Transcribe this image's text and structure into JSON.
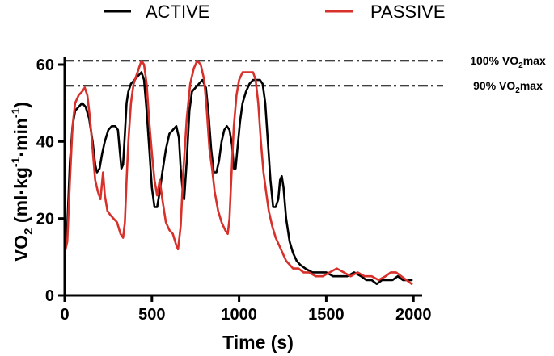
{
  "chart_data": {
    "type": "line",
    "xlabel": "Time (s)",
    "ylabel_main": "VO",
    "ylabel_sub": "2",
    "ylabel_unit_prefix": " (ml·kg",
    "ylabel_unit_exp1": "-1",
    "ylabel_unit_mid": "·min",
    "ylabel_unit_exp2": "-1",
    "ylabel_unit_close": ")",
    "xlim": [
      0,
      2050
    ],
    "ylim": [
      0,
      65
    ],
    "x_ticks": [
      0,
      500,
      1000,
      1500,
      2000
    ],
    "y_ticks": [
      0,
      20,
      40,
      60
    ],
    "legend_placement": "top",
    "reference_lines": [
      {
        "value": 61,
        "label_pre": "100% VO",
        "label_sub": "2",
        "label_post": "max"
      },
      {
        "value": 54.5,
        "label_pre": "90% VO",
        "label_sub": "2",
        "label_post": "max"
      }
    ],
    "series": [
      {
        "name": "ACTIVE",
        "color": "#000000",
        "points": [
          [
            0,
            13
          ],
          [
            15,
            18
          ],
          [
            30,
            35
          ],
          [
            45,
            44
          ],
          [
            60,
            48
          ],
          [
            80,
            49
          ],
          [
            100,
            50
          ],
          [
            120,
            49
          ],
          [
            140,
            46
          ],
          [
            160,
            40
          ],
          [
            175,
            34
          ],
          [
            185,
            32
          ],
          [
            200,
            33
          ],
          [
            215,
            37
          ],
          [
            230,
            40
          ],
          [
            250,
            43
          ],
          [
            270,
            44
          ],
          [
            290,
            44
          ],
          [
            305,
            43
          ],
          [
            315,
            38
          ],
          [
            325,
            33
          ],
          [
            335,
            34
          ],
          [
            345,
            42
          ],
          [
            355,
            50
          ],
          [
            365,
            53
          ],
          [
            380,
            55
          ],
          [
            400,
            56
          ],
          [
            420,
            57
          ],
          [
            440,
            58
          ],
          [
            455,
            56
          ],
          [
            470,
            48
          ],
          [
            485,
            38
          ],
          [
            500,
            28
          ],
          [
            515,
            23
          ],
          [
            530,
            23
          ],
          [
            545,
            27
          ],
          [
            560,
            32
          ],
          [
            580,
            38
          ],
          [
            600,
            42
          ],
          [
            620,
            43
          ],
          [
            640,
            44
          ],
          [
            655,
            41
          ],
          [
            665,
            33
          ],
          [
            675,
            28
          ],
          [
            685,
            25
          ],
          [
            700,
            35
          ],
          [
            715,
            48
          ],
          [
            730,
            53
          ],
          [
            750,
            54
          ],
          [
            770,
            55
          ],
          [
            790,
            56
          ],
          [
            810,
            54
          ],
          [
            825,
            47
          ],
          [
            840,
            38
          ],
          [
            855,
            32
          ],
          [
            870,
            32
          ],
          [
            885,
            35
          ],
          [
            900,
            40
          ],
          [
            915,
            43
          ],
          [
            930,
            44
          ],
          [
            945,
            43
          ],
          [
            960,
            39
          ],
          [
            970,
            33
          ],
          [
            980,
            33
          ],
          [
            990,
            38
          ],
          [
            1005,
            45
          ],
          [
            1020,
            50
          ],
          [
            1040,
            53
          ],
          [
            1060,
            55
          ],
          [
            1080,
            56
          ],
          [
            1100,
            56
          ],
          [
            1120,
            56
          ],
          [
            1135,
            55
          ],
          [
            1150,
            50
          ],
          [
            1165,
            40
          ],
          [
            1180,
            30
          ],
          [
            1195,
            23
          ],
          [
            1210,
            23
          ],
          [
            1225,
            25
          ],
          [
            1235,
            30
          ],
          [
            1245,
            31
          ],
          [
            1255,
            28
          ],
          [
            1270,
            20
          ],
          [
            1290,
            14
          ],
          [
            1310,
            11
          ],
          [
            1330,
            9
          ],
          [
            1350,
            8
          ],
          [
            1380,
            7
          ],
          [
            1420,
            6
          ],
          [
            1460,
            6
          ],
          [
            1500,
            6
          ],
          [
            1540,
            5
          ],
          [
            1580,
            5
          ],
          [
            1620,
            5
          ],
          [
            1660,
            6
          ],
          [
            1700,
            5
          ],
          [
            1730,
            4
          ],
          [
            1760,
            4
          ],
          [
            1790,
            3
          ],
          [
            1820,
            4
          ],
          [
            1850,
            4
          ],
          [
            1880,
            4
          ],
          [
            1910,
            5
          ],
          [
            1940,
            4
          ],
          [
            1970,
            4
          ],
          [
            1990,
            4
          ]
        ]
      },
      {
        "name": "PASSIVE",
        "color": "#d8302a",
        "points": [
          [
            0,
            11
          ],
          [
            15,
            14
          ],
          [
            30,
            30
          ],
          [
            45,
            44
          ],
          [
            60,
            50
          ],
          [
            80,
            52
          ],
          [
            100,
            53
          ],
          [
            115,
            54
          ],
          [
            130,
            52
          ],
          [
            145,
            46
          ],
          [
            160,
            38
          ],
          [
            175,
            30
          ],
          [
            190,
            27
          ],
          [
            205,
            25
          ],
          [
            220,
            32
          ],
          [
            230,
            26
          ],
          [
            245,
            22
          ],
          [
            260,
            21
          ],
          [
            280,
            20
          ],
          [
            300,
            19
          ],
          [
            320,
            16
          ],
          [
            335,
            15
          ],
          [
            345,
            19
          ],
          [
            355,
            30
          ],
          [
            365,
            40
          ],
          [
            380,
            50
          ],
          [
            395,
            55
          ],
          [
            410,
            57
          ],
          [
            425,
            59
          ],
          [
            440,
            61
          ],
          [
            455,
            60
          ],
          [
            470,
            55
          ],
          [
            485,
            45
          ],
          [
            500,
            37
          ],
          [
            515,
            30
          ],
          [
            530,
            26
          ],
          [
            545,
            30
          ],
          [
            560,
            25
          ],
          [
            580,
            19
          ],
          [
            600,
            17
          ],
          [
            620,
            16
          ],
          [
            640,
            13
          ],
          [
            650,
            12
          ],
          [
            665,
            18
          ],
          [
            680,
            32
          ],
          [
            700,
            46
          ],
          [
            720,
            55
          ],
          [
            740,
            59
          ],
          [
            760,
            61
          ],
          [
            780,
            60
          ],
          [
            800,
            56
          ],
          [
            815,
            48
          ],
          [
            830,
            38
          ],
          [
            845,
            33
          ],
          [
            860,
            27
          ],
          [
            880,
            22
          ],
          [
            900,
            19
          ],
          [
            920,
            17
          ],
          [
            935,
            16
          ],
          [
            945,
            20
          ],
          [
            955,
            30
          ],
          [
            970,
            44
          ],
          [
            985,
            52
          ],
          [
            1000,
            56
          ],
          [
            1020,
            58
          ],
          [
            1040,
            58
          ],
          [
            1060,
            58
          ],
          [
            1080,
            58
          ],
          [
            1095,
            56
          ],
          [
            1110,
            50
          ],
          [
            1125,
            40
          ],
          [
            1140,
            32
          ],
          [
            1155,
            27
          ],
          [
            1170,
            22
          ],
          [
            1190,
            18
          ],
          [
            1210,
            15
          ],
          [
            1230,
            13
          ],
          [
            1250,
            11
          ],
          [
            1270,
            9
          ],
          [
            1290,
            8
          ],
          [
            1310,
            7
          ],
          [
            1340,
            7
          ],
          [
            1370,
            6
          ],
          [
            1400,
            6
          ],
          [
            1440,
            5
          ],
          [
            1480,
            5
          ],
          [
            1520,
            6
          ],
          [
            1560,
            7
          ],
          [
            1600,
            6
          ],
          [
            1640,
            5
          ],
          [
            1680,
            6
          ],
          [
            1720,
            5
          ],
          [
            1760,
            5
          ],
          [
            1800,
            4
          ],
          [
            1840,
            5
          ],
          [
            1870,
            6
          ],
          [
            1900,
            6
          ],
          [
            1930,
            5
          ],
          [
            1960,
            4
          ],
          [
            1990,
            3
          ]
        ]
      }
    ]
  }
}
